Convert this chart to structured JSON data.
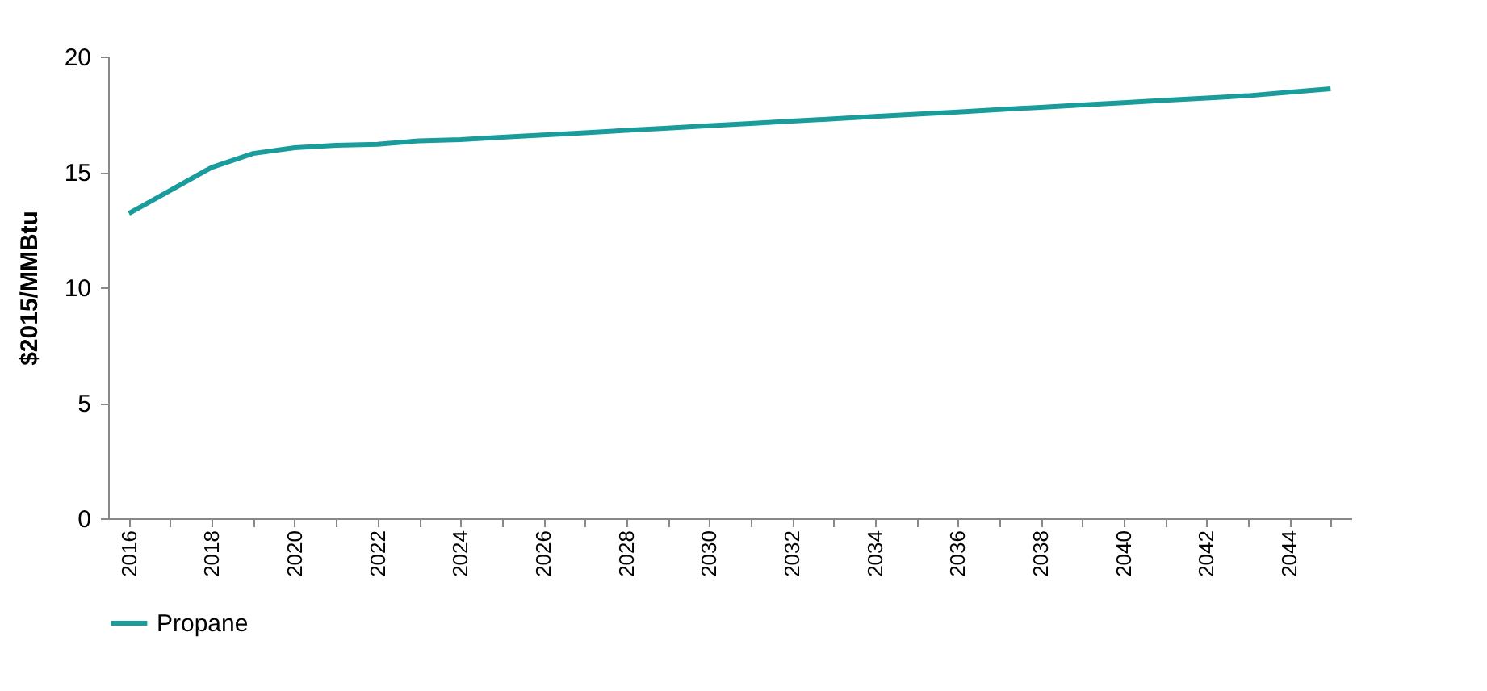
{
  "chart_data": {
    "type": "line",
    "ylabel": "$2015/MMBtu",
    "categories": [
      "2016",
      null,
      "2018",
      null,
      "2020",
      null,
      "2022",
      null,
      "2024",
      null,
      "2026",
      null,
      "2028",
      null,
      "2030",
      null,
      "2032",
      null,
      "2034",
      null,
      "2036",
      null,
      "2038",
      null,
      "2040",
      null,
      "2042",
      null,
      "2044",
      null
    ],
    "series": [
      {
        "name": "Propane",
        "color": "#1a9c9c",
        "values": [
          13.2,
          14.2,
          15.2,
          15.8,
          16.05,
          16.15,
          16.2,
          16.35,
          16.4,
          16.5,
          16.6,
          16.7,
          16.8,
          16.9,
          17.0,
          17.1,
          17.2,
          17.3,
          17.4,
          17.5,
          17.6,
          17.7,
          17.8,
          17.9,
          18.0,
          18.1,
          18.2,
          18.3,
          18.45,
          18.6
        ]
      }
    ],
    "ylim": [
      0,
      20
    ],
    "yticks": [
      0,
      5,
      10,
      15,
      20
    ],
    "grid": false,
    "legend": "bottom",
    "marker": "none",
    "line_style": "solid"
  }
}
